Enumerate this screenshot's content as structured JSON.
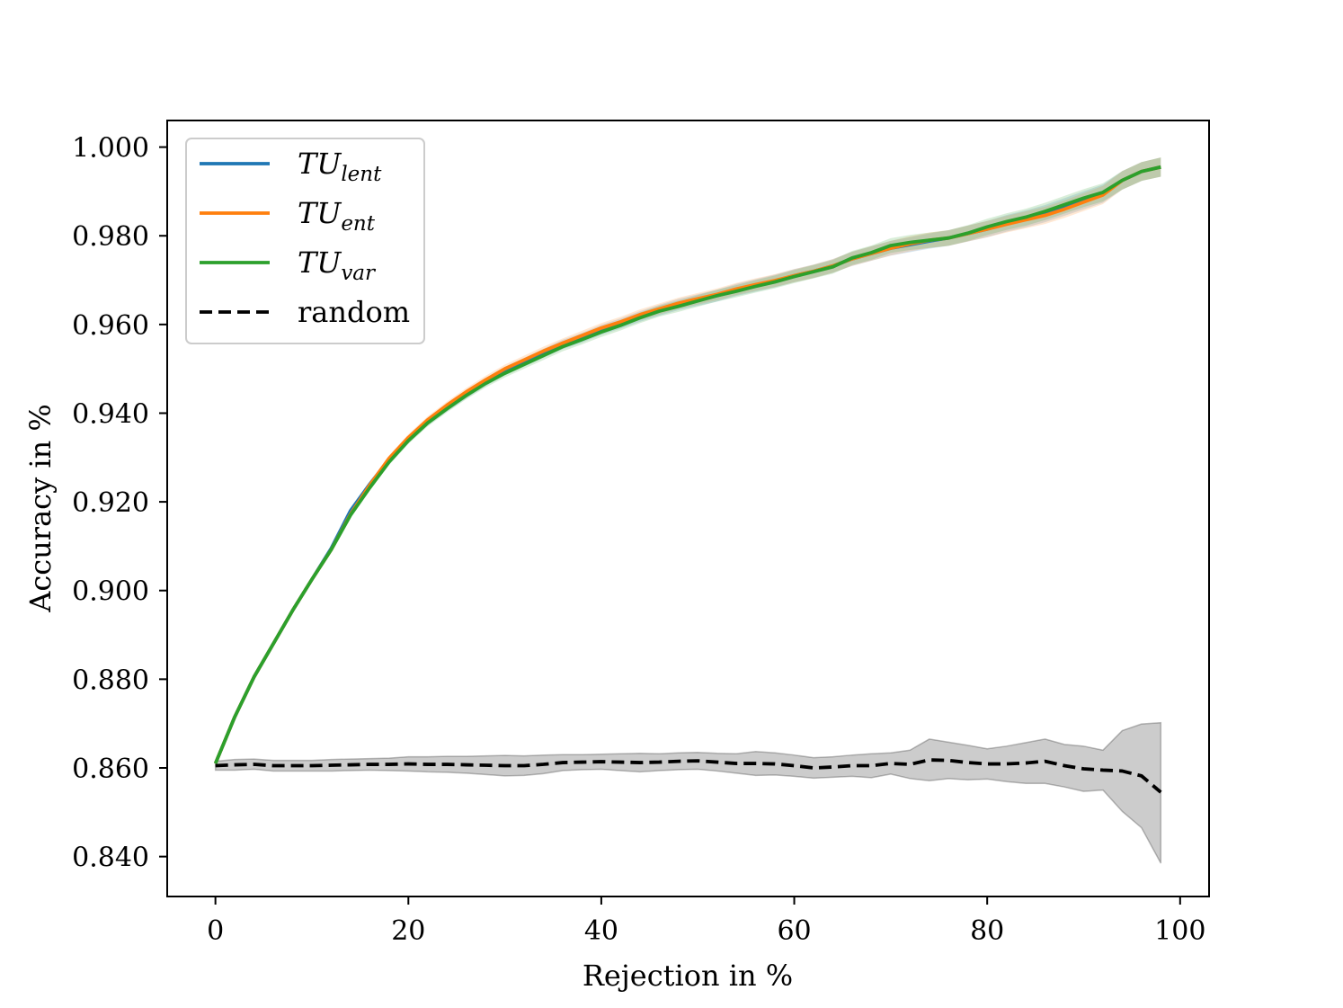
{
  "chart_data": {
    "type": "line",
    "title": "",
    "xlabel": "Rejection in %",
    "ylabel": "Accuracy in %",
    "xlim": [
      -5,
      103
    ],
    "ylim": [
      0.831,
      1.006
    ],
    "xticks": [
      0,
      20,
      40,
      60,
      80,
      100
    ],
    "xtick_labels": [
      "0",
      "20",
      "40",
      "60",
      "80",
      "100"
    ],
    "yticks": [
      0.84,
      0.86,
      0.88,
      0.9,
      0.92,
      0.94,
      0.96,
      0.98,
      1.0
    ],
    "ytick_labels": [
      "0.840",
      "0.860",
      "0.880",
      "0.900",
      "0.920",
      "0.940",
      "0.960",
      "0.980",
      "1.000"
    ],
    "legend_position": "top-left",
    "x": [
      0,
      2,
      4,
      6,
      8,
      10,
      12,
      14,
      16,
      18,
      20,
      22,
      24,
      26,
      28,
      30,
      32,
      34,
      36,
      38,
      40,
      42,
      44,
      46,
      48,
      50,
      52,
      54,
      56,
      58,
      60,
      62,
      64,
      66,
      68,
      70,
      72,
      74,
      76,
      78,
      80,
      82,
      84,
      86,
      88,
      90,
      92,
      94,
      96,
      98
    ],
    "series": [
      {
        "name": "TU_lent",
        "legend_main": "TU",
        "legend_sub": "lent",
        "color": "#1f77b4",
        "style": "solid",
        "values": [
          0.861,
          0.8715,
          0.8805,
          0.888,
          0.8955,
          0.9025,
          0.9095,
          0.918,
          0.924,
          0.9295,
          0.934,
          0.938,
          0.9412,
          0.9442,
          0.947,
          0.9495,
          0.9515,
          0.9535,
          0.9555,
          0.957,
          0.9588,
          0.9602,
          0.9618,
          0.9632,
          0.9645,
          0.9655,
          0.9665,
          0.9678,
          0.9688,
          0.9698,
          0.971,
          0.972,
          0.9732,
          0.9748,
          0.976,
          0.9772,
          0.978,
          0.9788,
          0.9795,
          0.9805,
          0.9815,
          0.9828,
          0.9838,
          0.985,
          0.9865,
          0.988,
          0.9895,
          0.9925,
          0.9945,
          0.9955
        ]
      },
      {
        "name": "TU_ent",
        "legend_main": "TU",
        "legend_sub": "ent",
        "color": "#ff7f0e",
        "style": "solid",
        "values": [
          0.861,
          0.8715,
          0.8805,
          0.888,
          0.8955,
          0.9025,
          0.9092,
          0.9172,
          0.9238,
          0.9298,
          0.9345,
          0.9385,
          0.9418,
          0.9448,
          0.9475,
          0.95,
          0.952,
          0.954,
          0.9558,
          0.9575,
          0.9592,
          0.9606,
          0.9622,
          0.9635,
          0.9648,
          0.9658,
          0.9668,
          0.968,
          0.969,
          0.9699,
          0.971,
          0.972,
          0.9732,
          0.9748,
          0.976,
          0.9772,
          0.9782,
          0.979,
          0.9795,
          0.9805,
          0.9815,
          0.9826,
          0.9836,
          0.9846,
          0.986,
          0.9876,
          0.9892,
          0.9925,
          0.9945,
          0.9955
        ]
      },
      {
        "name": "TU_var",
        "legend_main": "TU",
        "legend_sub": "var",
        "color": "#2ca02c",
        "style": "solid",
        "values": [
          0.861,
          0.8715,
          0.8805,
          0.888,
          0.8955,
          0.9025,
          0.9092,
          0.917,
          0.9232,
          0.929,
          0.9338,
          0.9378,
          0.941,
          0.944,
          0.9467,
          0.949,
          0.951,
          0.953,
          0.955,
          0.9566,
          0.9583,
          0.9598,
          0.9615,
          0.963,
          0.9641,
          0.9653,
          0.9665,
          0.9675,
          0.9686,
          0.9696,
          0.9708,
          0.9719,
          0.973,
          0.975,
          0.9762,
          0.9778,
          0.9785,
          0.979,
          0.9795,
          0.9806,
          0.982,
          0.9832,
          0.9842,
          0.9855,
          0.987,
          0.9885,
          0.9898,
          0.9925,
          0.9945,
          0.9955
        ]
      },
      {
        "name": "random",
        "legend_main": "random",
        "color": "#000000",
        "style": "dashed",
        "values": [
          0.8605,
          0.8607,
          0.8608,
          0.8605,
          0.8605,
          0.8605,
          0.8606,
          0.8607,
          0.8608,
          0.8608,
          0.8609,
          0.8608,
          0.8608,
          0.8607,
          0.8606,
          0.8605,
          0.8605,
          0.8608,
          0.8612,
          0.8613,
          0.8614,
          0.8613,
          0.8612,
          0.8613,
          0.8615,
          0.8616,
          0.8613,
          0.861,
          0.861,
          0.8609,
          0.8605,
          0.86,
          0.8602,
          0.8605,
          0.8605,
          0.861,
          0.8608,
          0.8618,
          0.8617,
          0.8612,
          0.8609,
          0.8609,
          0.8611,
          0.8615,
          0.8605,
          0.8598,
          0.8595,
          0.8593,
          0.8582,
          0.8545
        ],
        "band_lower": [
          0.8595,
          0.8595,
          0.8597,
          0.8593,
          0.8593,
          0.8593,
          0.8593,
          0.8594,
          0.8595,
          0.8594,
          0.8593,
          0.8591,
          0.859,
          0.8588,
          0.8585,
          0.8582,
          0.8583,
          0.8587,
          0.8594,
          0.8596,
          0.8597,
          0.8594,
          0.8591,
          0.8594,
          0.8596,
          0.8597,
          0.8593,
          0.8588,
          0.8583,
          0.8584,
          0.8581,
          0.8577,
          0.8579,
          0.8581,
          0.8578,
          0.8586,
          0.8576,
          0.8571,
          0.8576,
          0.8573,
          0.8575,
          0.8569,
          0.8565,
          0.8565,
          0.8557,
          0.8547,
          0.855,
          0.8502,
          0.8465,
          0.8385
        ],
        "band_upper": [
          0.8615,
          0.8619,
          0.862,
          0.8617,
          0.8617,
          0.8617,
          0.8619,
          0.862,
          0.8621,
          0.8622,
          0.8625,
          0.8625,
          0.8626,
          0.8626,
          0.8627,
          0.8628,
          0.8627,
          0.8629,
          0.863,
          0.863,
          0.8631,
          0.8632,
          0.8633,
          0.8632,
          0.8634,
          0.8635,
          0.8633,
          0.8632,
          0.8637,
          0.8634,
          0.8629,
          0.8623,
          0.8625,
          0.8629,
          0.8632,
          0.8634,
          0.864,
          0.8665,
          0.8658,
          0.8651,
          0.8643,
          0.8649,
          0.8657,
          0.8665,
          0.8653,
          0.8649,
          0.864,
          0.8684,
          0.8699,
          0.8702
        ]
      }
    ]
  }
}
